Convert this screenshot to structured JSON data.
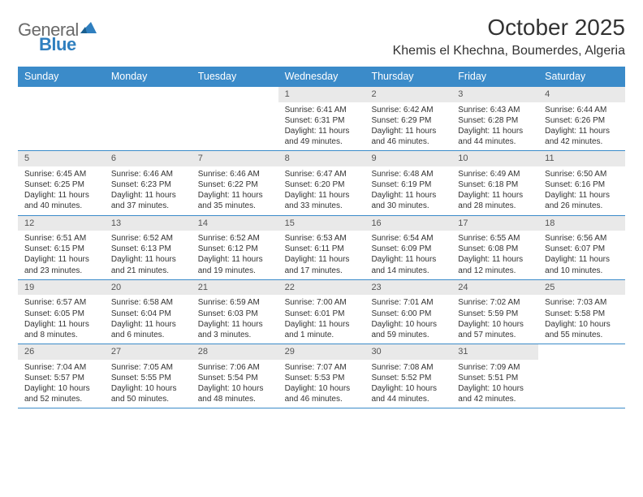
{
  "logo": {
    "text1": "General",
    "text2": "Blue"
  },
  "title": "October 2025",
  "location": "Khemis el Khechna, Boumerdes, Algeria",
  "colors": {
    "header_bg": "#3b8bc9",
    "header_text": "#ffffff",
    "daynum_bg": "#e9e9e9",
    "border": "#3b8bc9",
    "text": "#333333",
    "logo_gray": "#6a6a6a",
    "logo_blue": "#2f7fbf"
  },
  "day_names": [
    "Sunday",
    "Monday",
    "Tuesday",
    "Wednesday",
    "Thursday",
    "Friday",
    "Saturday"
  ],
  "weeks": [
    [
      {
        "n": "",
        "sr": "",
        "ss": "",
        "dl": ""
      },
      {
        "n": "",
        "sr": "",
        "ss": "",
        "dl": ""
      },
      {
        "n": "",
        "sr": "",
        "ss": "",
        "dl": ""
      },
      {
        "n": "1",
        "sr": "6:41 AM",
        "ss": "6:31 PM",
        "dl": "11 hours and 49 minutes."
      },
      {
        "n": "2",
        "sr": "6:42 AM",
        "ss": "6:29 PM",
        "dl": "11 hours and 46 minutes."
      },
      {
        "n": "3",
        "sr": "6:43 AM",
        "ss": "6:28 PM",
        "dl": "11 hours and 44 minutes."
      },
      {
        "n": "4",
        "sr": "6:44 AM",
        "ss": "6:26 PM",
        "dl": "11 hours and 42 minutes."
      }
    ],
    [
      {
        "n": "5",
        "sr": "6:45 AM",
        "ss": "6:25 PM",
        "dl": "11 hours and 40 minutes."
      },
      {
        "n": "6",
        "sr": "6:46 AM",
        "ss": "6:23 PM",
        "dl": "11 hours and 37 minutes."
      },
      {
        "n": "7",
        "sr": "6:46 AM",
        "ss": "6:22 PM",
        "dl": "11 hours and 35 minutes."
      },
      {
        "n": "8",
        "sr": "6:47 AM",
        "ss": "6:20 PM",
        "dl": "11 hours and 33 minutes."
      },
      {
        "n": "9",
        "sr": "6:48 AM",
        "ss": "6:19 PM",
        "dl": "11 hours and 30 minutes."
      },
      {
        "n": "10",
        "sr": "6:49 AM",
        "ss": "6:18 PM",
        "dl": "11 hours and 28 minutes."
      },
      {
        "n": "11",
        "sr": "6:50 AM",
        "ss": "6:16 PM",
        "dl": "11 hours and 26 minutes."
      }
    ],
    [
      {
        "n": "12",
        "sr": "6:51 AM",
        "ss": "6:15 PM",
        "dl": "11 hours and 23 minutes."
      },
      {
        "n": "13",
        "sr": "6:52 AM",
        "ss": "6:13 PM",
        "dl": "11 hours and 21 minutes."
      },
      {
        "n": "14",
        "sr": "6:52 AM",
        "ss": "6:12 PM",
        "dl": "11 hours and 19 minutes."
      },
      {
        "n": "15",
        "sr": "6:53 AM",
        "ss": "6:11 PM",
        "dl": "11 hours and 17 minutes."
      },
      {
        "n": "16",
        "sr": "6:54 AM",
        "ss": "6:09 PM",
        "dl": "11 hours and 14 minutes."
      },
      {
        "n": "17",
        "sr": "6:55 AM",
        "ss": "6:08 PM",
        "dl": "11 hours and 12 minutes."
      },
      {
        "n": "18",
        "sr": "6:56 AM",
        "ss": "6:07 PM",
        "dl": "11 hours and 10 minutes."
      }
    ],
    [
      {
        "n": "19",
        "sr": "6:57 AM",
        "ss": "6:05 PM",
        "dl": "11 hours and 8 minutes."
      },
      {
        "n": "20",
        "sr": "6:58 AM",
        "ss": "6:04 PM",
        "dl": "11 hours and 6 minutes."
      },
      {
        "n": "21",
        "sr": "6:59 AM",
        "ss": "6:03 PM",
        "dl": "11 hours and 3 minutes."
      },
      {
        "n": "22",
        "sr": "7:00 AM",
        "ss": "6:01 PM",
        "dl": "11 hours and 1 minute."
      },
      {
        "n": "23",
        "sr": "7:01 AM",
        "ss": "6:00 PM",
        "dl": "10 hours and 59 minutes."
      },
      {
        "n": "24",
        "sr": "7:02 AM",
        "ss": "5:59 PM",
        "dl": "10 hours and 57 minutes."
      },
      {
        "n": "25",
        "sr": "7:03 AM",
        "ss": "5:58 PM",
        "dl": "10 hours and 55 minutes."
      }
    ],
    [
      {
        "n": "26",
        "sr": "7:04 AM",
        "ss": "5:57 PM",
        "dl": "10 hours and 52 minutes."
      },
      {
        "n": "27",
        "sr": "7:05 AM",
        "ss": "5:55 PM",
        "dl": "10 hours and 50 minutes."
      },
      {
        "n": "28",
        "sr": "7:06 AM",
        "ss": "5:54 PM",
        "dl": "10 hours and 48 minutes."
      },
      {
        "n": "29",
        "sr": "7:07 AM",
        "ss": "5:53 PM",
        "dl": "10 hours and 46 minutes."
      },
      {
        "n": "30",
        "sr": "7:08 AM",
        "ss": "5:52 PM",
        "dl": "10 hours and 44 minutes."
      },
      {
        "n": "31",
        "sr": "7:09 AM",
        "ss": "5:51 PM",
        "dl": "10 hours and 42 minutes."
      },
      {
        "n": "",
        "sr": "",
        "ss": "",
        "dl": ""
      }
    ]
  ],
  "labels": {
    "sunrise": "Sunrise:",
    "sunset": "Sunset:",
    "daylight": "Daylight:"
  }
}
